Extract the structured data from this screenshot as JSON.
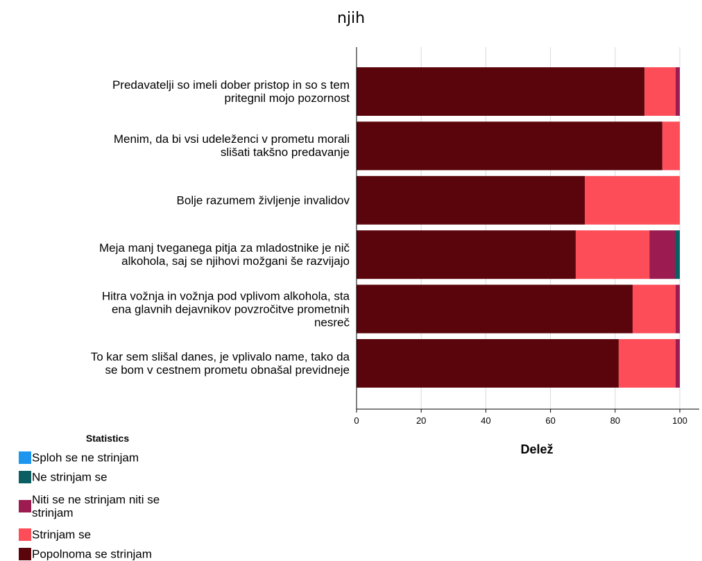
{
  "chart_data": {
    "type": "stacked_barh",
    "title": "njih",
    "xlabel": "Delež",
    "legend_title": "Statistics",
    "categories": [
      "Predavatelji so imeli dober pristop in so s tem\npritegnil mojo pozornost",
      "Menim, da bi vsi udeleženci v prometu morali\nslišati takšno predavanje",
      "Bolje razumem življenje invalidov",
      "Meja manj tveganega pitja za mladostnike je nič\nalkohola, saj se njihovi možgani še razvijajo",
      "Hitra vožnja in vožnja pod vplivom alkohola, sta\nena glavnih dejavnikov povzročitve prometnih\nnesreč",
      "To kar sem slišal danes, je vplivalo name, tako da\nse bom v cestnem prometu obnašal previdneje"
    ],
    "series": [
      {
        "name": "Sploh se ne strinjam",
        "color": "#1e96ef",
        "values": [
          0,
          0,
          0,
          0,
          0,
          0
        ]
      },
      {
        "name": "Ne strinjam se",
        "color": "#0b5f62",
        "values": [
          0,
          0,
          0,
          1.5,
          0,
          0
        ]
      },
      {
        "name": "Niti se ne strinjam niti se\nstrinjam",
        "color": "#9c1b50",
        "values": [
          1.3,
          0,
          0,
          7.9,
          1.3,
          1.3
        ]
      },
      {
        "name": "Strinjam se",
        "color": "#fc4d58",
        "values": [
          9.6,
          5.4,
          29.4,
          22.8,
          13.3,
          17.6
        ]
      },
      {
        "name": "Popolnoma se strinjam",
        "color": "#5a050b",
        "values": [
          89.1,
          94.6,
          70.6,
          67.8,
          85.4,
          81.1
        ]
      }
    ],
    "xlim": [
      0,
      106
    ],
    "xticks": [
      0,
      20,
      40,
      60,
      80,
      100
    ],
    "grid": true
  }
}
